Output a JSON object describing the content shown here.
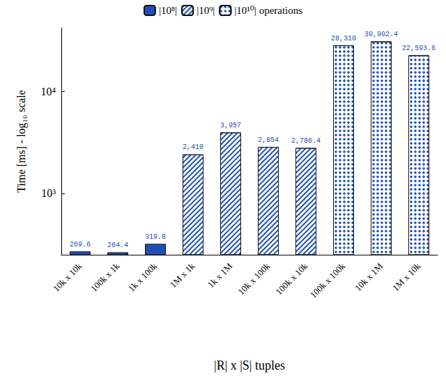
{
  "chart_data": {
    "type": "bar",
    "categories": [
      "10k x 10k",
      "100k x 1k",
      "1k x 100k",
      "1M x 1k",
      "1k x 1M",
      "10k x 100k",
      "100k x 10k",
      "100k x 100k",
      "10k x 1M",
      "1M x 10k"
    ],
    "series": [
      {
        "name": "|10⁸|",
        "color": "#1f4fb5",
        "values": [
          269.6,
          264.4,
          319.8,
          null,
          null,
          null,
          null,
          null,
          null,
          null
        ],
        "value_labels": [
          "269.6",
          "264.4",
          "319.8",
          null,
          null,
          null,
          null,
          null,
          null,
          null
        ]
      },
      {
        "name": "|10⁹|",
        "color": "#1f4fb5",
        "values": [
          null,
          null,
          null,
          2410,
          3957,
          2854,
          2786.4,
          null,
          null,
          null
        ],
        "value_labels": [
          null,
          null,
          null,
          "2,410",
          "3,957",
          "2,854",
          "2,786.4",
          null,
          null,
          null
        ]
      },
      {
        "name": "|10¹⁰| operations",
        "color": "#1f4fb5",
        "values": [
          null,
          null,
          null,
          null,
          null,
          null,
          null,
          28310,
          30902.4,
          22593.6
        ],
        "value_labels": [
          null,
          null,
          null,
          null,
          null,
          null,
          null,
          "28,310",
          "30,902.4",
          "22,593.6"
        ]
      }
    ],
    "x_label": "|R| x |S| tuples",
    "y_label": "Time [ms] - log₁₀ scale",
    "log": "y",
    "ylim": [
      250,
      42000
    ],
    "yticks": [
      {
        "value": 1000,
        "label": "10³"
      },
      {
        "value": 10000,
        "label": "10⁴"
      }
    ],
    "grid": false,
    "legend": "top",
    "data_labels": true
  }
}
